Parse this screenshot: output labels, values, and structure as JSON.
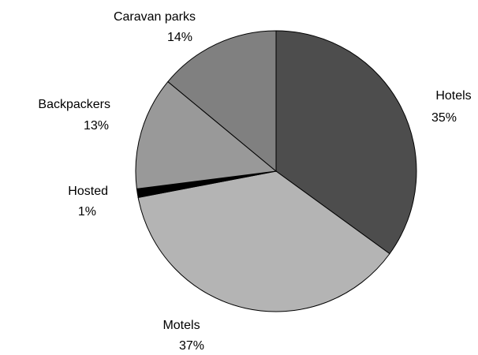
{
  "chart_data": {
    "type": "pie",
    "categories": [
      "Hotels",
      "Motels",
      "Hosted",
      "Backpackers",
      "Caravan parks"
    ],
    "values": [
      35,
      37,
      1,
      13,
      14
    ],
    "value_labels": [
      "35%",
      "37%",
      "1%",
      "13%",
      "14%"
    ],
    "colors": [
      "#4d4d4d",
      "#b4b4b4",
      "#000000",
      "#999999",
      "#808080"
    ]
  }
}
